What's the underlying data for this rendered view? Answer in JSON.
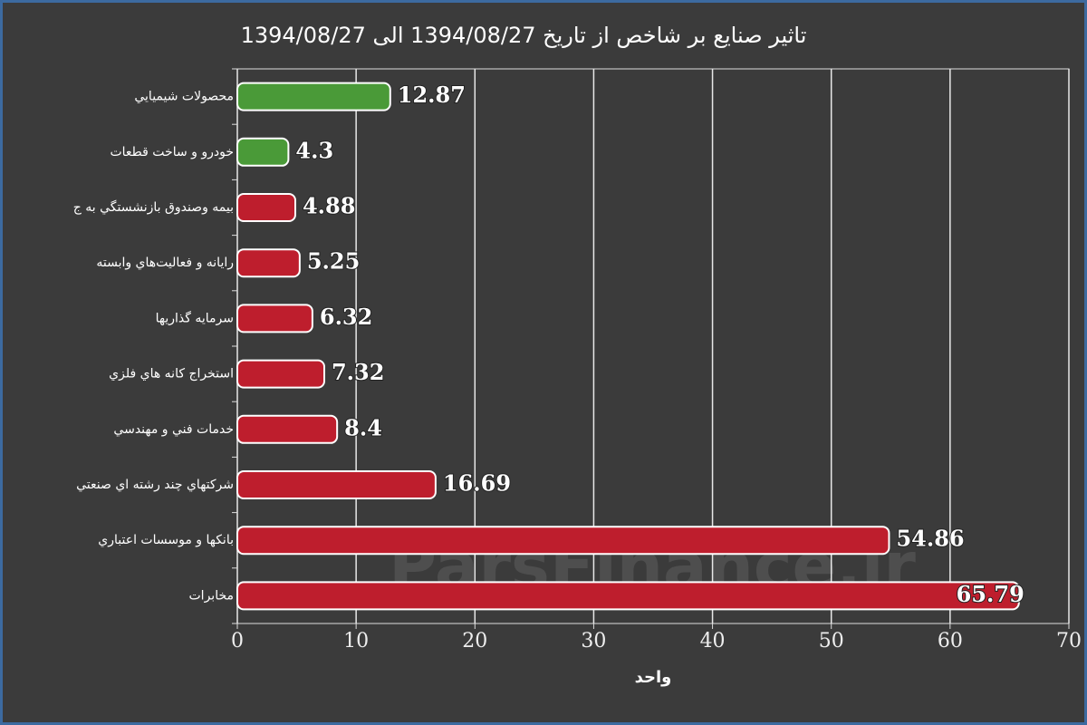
{
  "chart_data": {
    "type": "bar",
    "orientation": "horizontal",
    "title": "تاثیر صنایع بر شاخص از تاریخ 1394/08/27 الی 1394/08/27",
    "x_label": "واحد",
    "watermark": "ParsFinance.ir",
    "categories": [
      "محصولات شيميايي",
      "خودرو و ساخت قطعات",
      "بيمه وصندوق بازنشستگي به ج",
      "رايانه و فعاليت‌هاي وابسته",
      "سرمايه گذاريها",
      "استخراج كانه هاي فلزي",
      "خدمات فني و مهندسي",
      "شركتهاي چند رشته اي صنعتي",
      "بانكها و موسسات اعتباري",
      "مخابرات"
    ],
    "values": [
      12.87,
      4.3,
      4.88,
      5.25,
      6.32,
      7.32,
      8.4,
      16.69,
      54.86,
      65.79
    ],
    "colors": [
      "#4a9a38",
      "#4a9a38",
      "#be1e2d",
      "#be1e2d",
      "#be1e2d",
      "#be1e2d",
      "#be1e2d",
      "#be1e2d",
      "#be1e2d",
      "#be1e2d"
    ],
    "xlim": [
      0,
      70
    ],
    "xticks": [
      0,
      10,
      20,
      30,
      40,
      50,
      60,
      70
    ],
    "grid": true
  }
}
